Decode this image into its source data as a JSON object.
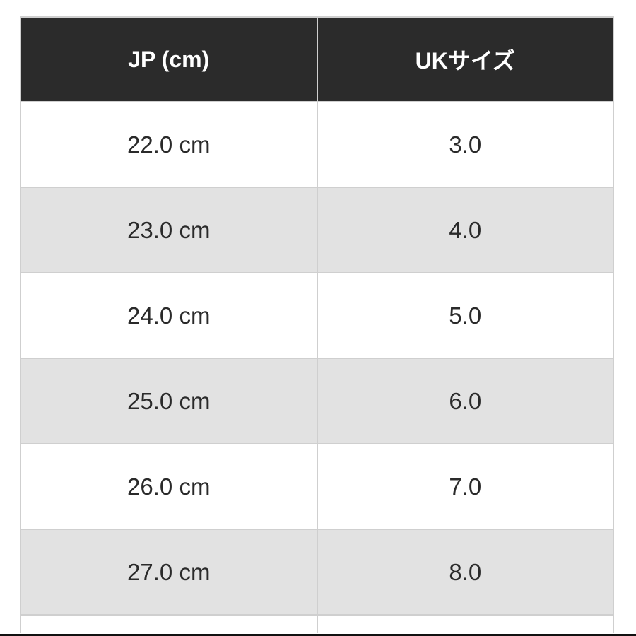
{
  "table": {
    "headers": [
      "JP (cm)",
      "UKサイズ"
    ],
    "rows": [
      [
        "22.0 cm",
        "3.0"
      ],
      [
        "23.0 cm",
        "4.0"
      ],
      [
        "24.0 cm",
        "5.0"
      ],
      [
        "25.0 cm",
        "6.0"
      ],
      [
        "26.0 cm",
        "7.0"
      ],
      [
        "27.0 cm",
        "8.0"
      ],
      [
        "",
        ""
      ]
    ],
    "colors": {
      "header_bg": "#2b2b2b",
      "alt_row_bg": "#e2e2e2",
      "border": "#cfcfcf"
    }
  }
}
